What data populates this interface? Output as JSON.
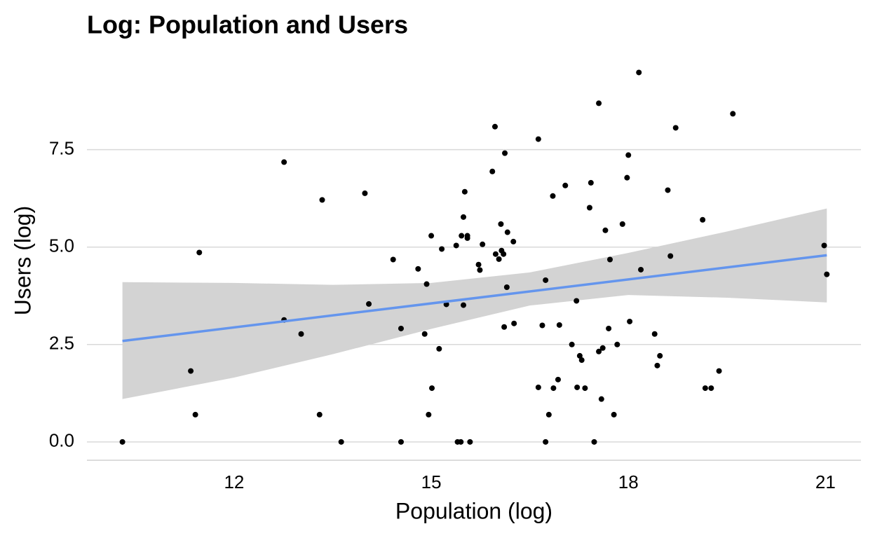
{
  "chart_data": {
    "type": "scatter",
    "title": "Log: Population and Users",
    "x_label": "Population (log)",
    "y_label": "Users (log)",
    "xlim": [
      9.76,
      21.54
    ],
    "ylim": [
      -0.47,
      9.65
    ],
    "xticks": [
      12,
      15,
      18,
      21
    ],
    "yticks": [
      {
        "value": 0,
        "label": "0.0"
      },
      2.5,
      {
        "value": 5,
        "label": "5.0"
      },
      7.5
    ],
    "grid": true,
    "color": "#000000",
    "x": [
      10.3,
      11.34,
      11.41,
      11.47,
      12.76,
      12.76,
      13.02,
      13.3,
      13.34,
      13.63,
      13.99,
      14.05,
      14.42,
      14.54,
      14.54,
      14.8,
      14.9,
      14.93,
      14.96,
      15.0,
      15.01,
      15.12,
      15.16,
      15.23,
      15.38,
      15.4,
      15.45,
      15.46,
      15.49,
      15.49,
      15.51,
      15.55,
      15.55,
      15.59,
      15.72,
      15.74,
      15.78,
      15.93,
      15.97,
      15.98,
      16.03,
      16.06,
      16.07,
      16.1,
      16.11,
      16.12,
      16.15,
      16.16,
      16.25,
      16.26,
      16.63,
      16.63,
      16.69,
      16.74,
      16.74,
      16.79,
      16.85,
      16.86,
      16.93,
      16.95,
      17.04,
      17.14,
      17.21,
      17.22,
      17.26,
      17.29,
      17.34,
      17.41,
      17.43,
      17.48,
      17.55,
      17.55,
      17.59,
      17.61,
      17.65,
      17.7,
      17.72,
      17.78,
      17.83,
      17.91,
      17.98,
      18.0,
      18.02,
      18.16,
      18.19,
      18.4,
      18.44,
      18.48,
      18.6,
      18.64,
      18.72,
      19.13,
      19.17,
      19.26,
      19.38,
      19.59,
      20.98,
      21.02
    ],
    "values": [
      0,
      1.82,
      0.7,
      4.86,
      7.18,
      3.13,
      2.77,
      0.7,
      6.21,
      0,
      6.38,
      3.54,
      4.68,
      2.91,
      0,
      4.44,
      2.77,
      4.05,
      0.7,
      5.29,
      1.38,
      2.39,
      4.95,
      3.53,
      5.04,
      0,
      0,
      5.29,
      5.77,
      3.51,
      6.42,
      5.29,
      5.23,
      0,
      4.55,
      4.41,
      5.07,
      6.94,
      8.09,
      4.82,
      4.69,
      5.59,
      4.91,
      4.82,
      2.95,
      7.41,
      3.97,
      5.38,
      5.14,
      3.04,
      7.77,
      1.4,
      2.99,
      4.15,
      0,
      0.7,
      6.31,
      1.38,
      1.6,
      3.0,
      6.58,
      2.5,
      3.62,
      1.4,
      2.21,
      2.1,
      1.38,
      6.01,
      6.65,
      0,
      8.69,
      2.32,
      1.1,
      2.41,
      5.43,
      2.91,
      4.68,
      0.7,
      2.5,
      5.59,
      6.78,
      7.36,
      3.09,
      9.48,
      4.42,
      2.77,
      1.96,
      2.21,
      6.46,
      4.77,
      8.06,
      5.7,
      1.38,
      1.38,
      1.82,
      8.42,
      5.04,
      4.3
    ],
    "fit": {
      "x": [
        10.3,
        21.02
      ],
      "y": [
        2.59,
        4.79
      ],
      "color": "#6495ed"
    },
    "band": {
      "x": [
        10.3,
        12,
        13.5,
        15,
        16.5,
        18,
        19.5,
        21.02
      ],
      "lower": [
        1.1,
        1.65,
        2.25,
        2.9,
        3.5,
        3.77,
        3.7,
        3.58
      ],
      "upper": [
        4.1,
        4.08,
        4.03,
        4.08,
        4.35,
        4.85,
        5.4,
        5.99
      ],
      "color": "#d3d3d3"
    }
  }
}
